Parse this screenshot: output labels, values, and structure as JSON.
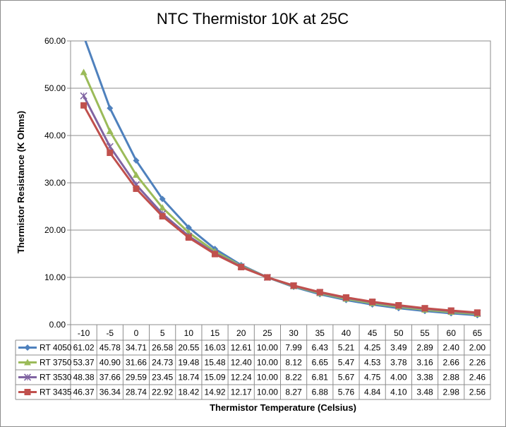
{
  "chart_data": {
    "type": "line",
    "title": "NTC Thermistor 10K at 25C",
    "xlabel": "Thermistor Temperature (Celsius)",
    "ylabel": "Thermistor Resistance (K Ohms)",
    "ylim": [
      0,
      60
    ],
    "y_ticks": [
      "0.00",
      "10.00",
      "20.00",
      "30.00",
      "40.00",
      "50.00",
      "60.00"
    ],
    "categories": [
      "-10",
      "-5",
      "0",
      "5",
      "10",
      "15",
      "20",
      "25",
      "30",
      "35",
      "40",
      "45",
      "50",
      "55",
      "60",
      "65"
    ],
    "grid": true,
    "legend": "data-table",
    "series": [
      {
        "name": "RT 4050",
        "color": "#4f81bd",
        "marker": "diamond",
        "values": [
          61.02,
          45.78,
          34.71,
          26.58,
          20.55,
          16.03,
          12.61,
          10.0,
          7.99,
          6.43,
          5.21,
          4.25,
          3.49,
          2.89,
          2.4,
          2.0
        ],
        "labels": [
          "61.02",
          "45.78",
          "34.71",
          "26.58",
          "20.55",
          "16.03",
          "12.61",
          "10.00",
          "7.99",
          "6.43",
          "5.21",
          "4.25",
          "3.49",
          "2.89",
          "2.40",
          "2.00"
        ]
      },
      {
        "name": "RT 3750",
        "color": "#9bbb59",
        "marker": "triangle",
        "values": [
          53.37,
          40.9,
          31.66,
          24.73,
          19.48,
          15.48,
          12.4,
          10.0,
          8.12,
          6.65,
          5.47,
          4.53,
          3.78,
          3.16,
          2.66,
          2.26
        ],
        "labels": [
          "53.37",
          "40.90",
          "31.66",
          "24.73",
          "19.48",
          "15.48",
          "12.40",
          "10.00",
          "8.12",
          "6.65",
          "5.47",
          "4.53",
          "3.78",
          "3.16",
          "2.66",
          "2.26"
        ]
      },
      {
        "name": "RT 3530",
        "color": "#8064a2",
        "marker": "x",
        "values": [
          48.38,
          37.66,
          29.59,
          23.45,
          18.74,
          15.09,
          12.24,
          10.0,
          8.22,
          6.81,
          5.67,
          4.75,
          4.0,
          3.38,
          2.88,
          2.46
        ],
        "labels": [
          "48.38",
          "37.66",
          "29.59",
          "23.45",
          "18.74",
          "15.09",
          "12.24",
          "10.00",
          "8.22",
          "6.81",
          "5.67",
          "4.75",
          "4.00",
          "3.38",
          "2.88",
          "2.46"
        ]
      },
      {
        "name": "RT 3435",
        "color": "#c0504d",
        "marker": "square",
        "values": [
          46.37,
          36.34,
          28.74,
          22.92,
          18.42,
          14.92,
          12.17,
          10.0,
          8.27,
          6.88,
          5.76,
          4.84,
          4.1,
          3.48,
          2.98,
          2.56
        ],
        "labels": [
          "46.37",
          "36.34",
          "28.74",
          "22.92",
          "18.42",
          "14.92",
          "12.17",
          "10.00",
          "8.27",
          "6.88",
          "5.76",
          "4.84",
          "4.10",
          "3.48",
          "2.98",
          "2.56"
        ]
      }
    ]
  }
}
